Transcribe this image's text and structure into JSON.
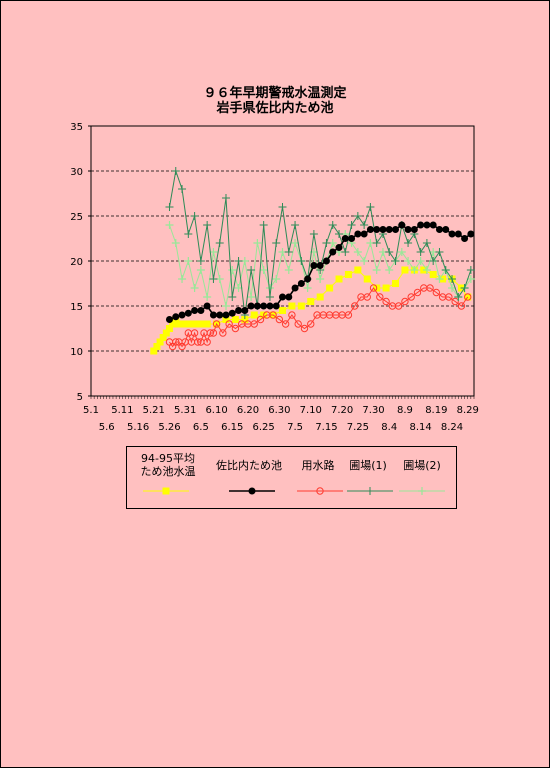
{
  "chart_data": {
    "type": "line",
    "title_line1": "９６年早期警戒水温測定",
    "title_line2": "岩手県佐比内ため池",
    "ylim": [
      5,
      35
    ],
    "yticks": [
      5,
      10,
      15,
      20,
      25,
      30,
      35
    ],
    "x_labels_row1": [
      "5.1",
      "5.11",
      "5.21",
      "5.31",
      "6.10",
      "6.20",
      "6.30",
      "7.10",
      "7.20",
      "7.30",
      "8.9",
      "8.19",
      "8.29"
    ],
    "x_labels_row2": [
      "5.6",
      "5.16",
      "5.26",
      "6.5",
      "6.15",
      "6.25",
      "7.5",
      "7.15",
      "7.25",
      "8.4",
      "8.14",
      "8.24"
    ],
    "x_axis_start": "5.1",
    "x_axis_end": "8.31",
    "grid": "horizontal dashed",
    "legend_position": "bottom",
    "colors": {
      "avg": "#ffff00",
      "tame": "#000000",
      "yosui": "#ff3b30",
      "enjo1": "#2e8b57",
      "enjo2": "#98e898"
    },
    "series": [
      {
        "key": "avg",
        "name": "94-95平均\nため池水温",
        "x": [
          "5.21",
          "5.22",
          "5.23",
          "5.24",
          "5.25",
          "5.26",
          "5.27",
          "5.28",
          "5.29",
          "5.30",
          "5.31",
          "6.1",
          "6.3",
          "6.5",
          "6.7",
          "6.10",
          "6.13",
          "6.16",
          "6.19",
          "6.22",
          "6.25",
          "6.28",
          "7.1",
          "7.4",
          "7.7",
          "7.10",
          "7.13",
          "7.16",
          "7.19",
          "7.22",
          "7.25",
          "7.28",
          "7.31",
          "8.3",
          "8.6",
          "8.9",
          "8.12",
          "8.15",
          "8.18",
          "8.21",
          "8.24",
          "8.27",
          "8.29"
        ],
        "values": [
          10,
          10.5,
          11,
          11.5,
          12,
          12.5,
          13,
          13.5,
          13,
          13,
          13,
          13,
          13,
          13,
          13,
          13,
          13.5,
          13.5,
          13.5,
          14,
          14,
          14,
          14.5,
          15,
          15,
          15.5,
          16,
          17,
          18,
          18.5,
          19,
          18,
          17,
          17,
          17.5,
          19,
          19,
          19,
          18.5,
          18,
          18,
          17,
          16
        ]
      },
      {
        "key": "tame",
        "name": "佐比内ため池",
        "x": [
          "5.26",
          "5.28",
          "5.30",
          "6.1",
          "6.3",
          "6.5",
          "6.7",
          "6.9",
          "6.11",
          "6.13",
          "6.15",
          "6.17",
          "6.19",
          "6.21",
          "6.23",
          "6.25",
          "6.27",
          "6.29",
          "7.1",
          "7.3",
          "7.5",
          "7.7",
          "7.9",
          "7.11",
          "7.13",
          "7.15",
          "7.17",
          "7.19",
          "7.21",
          "7.23",
          "7.25",
          "7.27",
          "7.29",
          "7.31",
          "8.2",
          "8.4",
          "8.6",
          "8.8",
          "8.10",
          "8.12",
          "8.14",
          "8.16",
          "8.18",
          "8.20",
          "8.22",
          "8.24",
          "8.26",
          "8.28",
          "8.30"
        ],
        "values": [
          13.5,
          13.8,
          14,
          14.2,
          14.5,
          14.5,
          15,
          14,
          14,
          14,
          14.2,
          14.5,
          14.5,
          15,
          15,
          15,
          15,
          15,
          16,
          16,
          17,
          17.5,
          18,
          19.5,
          19.5,
          20,
          21,
          21.5,
          22.5,
          22.5,
          23,
          23,
          23.5,
          23.5,
          23.5,
          23.5,
          23.5,
          24,
          23.5,
          23.5,
          24,
          24,
          24,
          23.5,
          23.5,
          23,
          23,
          22.5,
          23
        ]
      },
      {
        "key": "yosui",
        "name": "用水路",
        "x": [
          "5.26",
          "5.27",
          "5.28",
          "5.29",
          "5.30",
          "5.31",
          "6.1",
          "6.2",
          "6.3",
          "6.4",
          "6.5",
          "6.6",
          "6.7",
          "6.8",
          "6.9",
          "6.10",
          "6.12",
          "6.14",
          "6.16",
          "6.18",
          "6.20",
          "6.22",
          "6.24",
          "6.26",
          "6.28",
          "6.30",
          "7.2",
          "7.4",
          "7.6",
          "7.8",
          "7.10",
          "7.12",
          "7.14",
          "7.16",
          "7.18",
          "7.20",
          "7.22",
          "7.24",
          "7.26",
          "7.28",
          "7.30",
          "8.1",
          "8.3",
          "8.5",
          "8.7",
          "8.9",
          "8.11",
          "8.13",
          "8.15",
          "8.17",
          "8.19",
          "8.21",
          "8.23",
          "8.25",
          "8.27",
          "8.29"
        ],
        "values": [
          11,
          10.5,
          11,
          11,
          10.5,
          11,
          12,
          11,
          12,
          11,
          11,
          12,
          11,
          12,
          12,
          13,
          12,
          13,
          12.5,
          13,
          13,
          13,
          13.5,
          14,
          14,
          13.5,
          13,
          14,
          13,
          12.5,
          13,
          14,
          14,
          14,
          14,
          14,
          14,
          15,
          16,
          16,
          17,
          16,
          15.5,
          15,
          15,
          15.5,
          16,
          16.5,
          17,
          17,
          16.5,
          16,
          16,
          15.5,
          15,
          16
        ]
      },
      {
        "key": "enjo1",
        "name": "圃場(1)",
        "x": [
          "5.26",
          "5.28",
          "5.30",
          "6.1",
          "6.3",
          "6.5",
          "6.7",
          "6.9",
          "6.11",
          "6.13",
          "6.15",
          "6.17",
          "6.19",
          "6.21",
          "6.23",
          "6.25",
          "6.27",
          "6.29",
          "7.1",
          "7.3",
          "7.5",
          "7.7",
          "7.9",
          "7.11",
          "7.13",
          "7.15",
          "7.17",
          "7.19",
          "7.21",
          "7.23",
          "7.25",
          "7.27",
          "7.29",
          "7.31",
          "8.2",
          "8.4",
          "8.6",
          "8.8",
          "8.10",
          "8.12",
          "8.14",
          "8.16",
          "8.18",
          "8.20",
          "8.22",
          "8.24",
          "8.26",
          "8.28",
          "8.30"
        ],
        "values": [
          26,
          30,
          28,
          23,
          25,
          20,
          24,
          18,
          22,
          27,
          16,
          20,
          14,
          19,
          15,
          24,
          16,
          22,
          26,
          21,
          24,
          20,
          18,
          23,
          19,
          22,
          24,
          23,
          21,
          24,
          25,
          24,
          26,
          22,
          23,
          21,
          20,
          24,
          22,
          23,
          21,
          22,
          20,
          21,
          19,
          18,
          16,
          17,
          19
        ]
      },
      {
        "key": "enjo2",
        "name": "圃場(2)",
        "x": [
          "5.26",
          "5.28",
          "5.30",
          "6.1",
          "6.3",
          "6.5",
          "6.7",
          "6.9",
          "6.11",
          "6.13",
          "6.15",
          "6.17",
          "6.19",
          "6.21",
          "6.23",
          "6.25",
          "6.27",
          "6.29",
          "7.1",
          "7.3",
          "7.5",
          "7.7",
          "7.9",
          "7.11",
          "7.13",
          "7.15",
          "7.17",
          "7.19",
          "7.21",
          "7.23",
          "7.25",
          "7.27",
          "7.29",
          "7.31",
          "8.2",
          "8.4",
          "8.6",
          "8.8",
          "8.10",
          "8.12",
          "8.14",
          "8.16",
          "8.18",
          "8.20",
          "8.22",
          "8.24",
          "8.26",
          "8.28",
          "8.30"
        ],
        "values": [
          24,
          22,
          18,
          20,
          17,
          19,
          16,
          21,
          18,
          15,
          19,
          17,
          20,
          16,
          22,
          19,
          17,
          18,
          21,
          19,
          22,
          20,
          17,
          21,
          18,
          20,
          22,
          21,
          23,
          22,
          21,
          20,
          22,
          19,
          21,
          19,
          20,
          21,
          20,
          19,
          20,
          19,
          21,
          18,
          19,
          17,
          16,
          17,
          18
        ]
      }
    ]
  }
}
